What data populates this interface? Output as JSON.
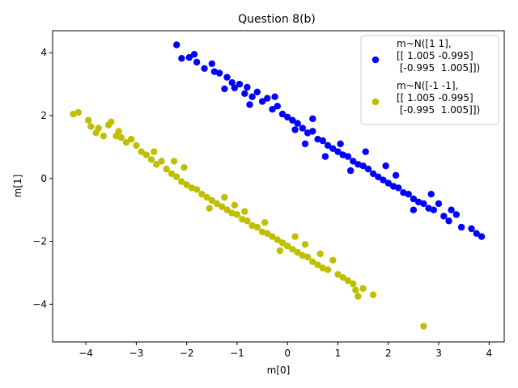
{
  "chart_data": {
    "type": "scatter",
    "title": "Question 8(b)",
    "xlabel": "m[0]",
    "ylabel": "m[1]",
    "xlim": [
      -4.66,
      4.3
    ],
    "ylim": [
      -5.2,
      4.7
    ],
    "xticks": [
      -4,
      -3,
      -2,
      -1,
      0,
      1,
      2,
      3,
      4
    ],
    "yticks": [
      -4,
      -2,
      0,
      2,
      4
    ],
    "grid": false,
    "legend_position": "top-right",
    "series": [
      {
        "name": "m~N([1 1],\n[[ 1.005 -0.995]\n [-0.995  1.005]])",
        "color": "#0000ff",
        "points": [
          [
            -2.2,
            4.25
          ],
          [
            -2.1,
            3.82
          ],
          [
            -1.95,
            3.85
          ],
          [
            -1.85,
            3.95
          ],
          [
            -1.8,
            3.7
          ],
          [
            -1.65,
            3.5
          ],
          [
            -1.5,
            3.65
          ],
          [
            -1.45,
            3.4
          ],
          [
            -1.35,
            3.35
          ],
          [
            -1.2,
            3.22
          ],
          [
            -1.1,
            3.05
          ],
          [
            -1.05,
            2.88
          ],
          [
            -0.95,
            3.0
          ],
          [
            -0.85,
            2.7
          ],
          [
            -0.8,
            2.9
          ],
          [
            -0.7,
            2.6
          ],
          [
            -0.6,
            2.75
          ],
          [
            -0.5,
            2.45
          ],
          [
            -0.4,
            2.55
          ],
          [
            -0.3,
            2.2
          ],
          [
            -0.2,
            2.3
          ],
          [
            -0.1,
            2.05
          ],
          [
            0.0,
            1.95
          ],
          [
            0.1,
            1.85
          ],
          [
            0.2,
            1.75
          ],
          [
            0.3,
            1.6
          ],
          [
            0.4,
            1.45
          ],
          [
            0.5,
            1.5
          ],
          [
            0.6,
            1.25
          ],
          [
            0.7,
            1.2
          ],
          [
            0.8,
            1.05
          ],
          [
            0.9,
            0.95
          ],
          [
            1.0,
            0.85
          ],
          [
            1.1,
            0.75
          ],
          [
            1.2,
            0.7
          ],
          [
            1.3,
            0.55
          ],
          [
            1.4,
            0.45
          ],
          [
            1.5,
            0.4
          ],
          [
            1.6,
            0.3
          ],
          [
            1.7,
            0.15
          ],
          [
            1.8,
            0.05
          ],
          [
            1.9,
            -0.05
          ],
          [
            2.0,
            -0.15
          ],
          [
            2.1,
            -0.25
          ],
          [
            2.2,
            -0.3
          ],
          [
            2.3,
            -0.45
          ],
          [
            2.4,
            -0.5
          ],
          [
            2.5,
            -0.65
          ],
          [
            2.6,
            -0.75
          ],
          [
            2.7,
            -0.8
          ],
          [
            2.8,
            -0.95
          ],
          [
            2.9,
            -1.0
          ],
          [
            3.0,
            -0.8
          ],
          [
            3.1,
            -1.2
          ],
          [
            3.2,
            -1.35
          ],
          [
            3.35,
            -1.15
          ],
          [
            3.45,
            -1.55
          ],
          [
            3.65,
            -1.6
          ],
          [
            3.75,
            -1.75
          ],
          [
            3.85,
            -1.85
          ],
          [
            0.5,
            1.9
          ],
          [
            0.75,
            0.7
          ],
          [
            1.95,
            0.4
          ],
          [
            1.25,
            0.25
          ],
          [
            2.5,
            -1.0
          ],
          [
            -0.25,
            2.6
          ],
          [
            0.35,
            1.1
          ],
          [
            1.55,
            0.85
          ],
          [
            2.85,
            -0.5
          ],
          [
            -0.75,
            2.35
          ],
          [
            0.15,
            1.55
          ],
          [
            1.05,
            1.1
          ],
          [
            2.15,
            0.1
          ],
          [
            3.25,
            -1.0
          ],
          [
            -1.25,
            2.85
          ]
        ]
      },
      {
        "name": "m~N([-1 -1],\n[[ 1.005 -0.995]\n [-0.995  1.005]])",
        "color": "#bfbf00",
        "points": [
          [
            -4.25,
            2.05
          ],
          [
            -4.15,
            2.1
          ],
          [
            -3.95,
            1.85
          ],
          [
            -3.9,
            1.65
          ],
          [
            -3.8,
            1.45
          ],
          [
            -3.75,
            1.6
          ],
          [
            -3.65,
            1.35
          ],
          [
            -3.55,
            1.7
          ],
          [
            -3.5,
            1.8
          ],
          [
            -3.4,
            1.35
          ],
          [
            -3.3,
            1.3
          ],
          [
            -3.2,
            1.15
          ],
          [
            -3.1,
            1.25
          ],
          [
            -3.0,
            1.05
          ],
          [
            -2.9,
            0.85
          ],
          [
            -2.8,
            0.75
          ],
          [
            -2.7,
            0.6
          ],
          [
            -2.6,
            0.45
          ],
          [
            -2.5,
            0.55
          ],
          [
            -2.4,
            0.3
          ],
          [
            -2.3,
            0.15
          ],
          [
            -2.2,
            0.05
          ],
          [
            -2.1,
            -0.1
          ],
          [
            -2.0,
            -0.2
          ],
          [
            -1.9,
            -0.3
          ],
          [
            -1.8,
            -0.35
          ],
          [
            -1.7,
            -0.5
          ],
          [
            -1.6,
            -0.6
          ],
          [
            -1.5,
            -0.7
          ],
          [
            -1.4,
            -0.8
          ],
          [
            -1.3,
            -0.9
          ],
          [
            -1.2,
            -1.0
          ],
          [
            -1.1,
            -1.1
          ],
          [
            -1.0,
            -1.15
          ],
          [
            -0.9,
            -1.3
          ],
          [
            -0.8,
            -1.35
          ],
          [
            -0.7,
            -1.5
          ],
          [
            -0.6,
            -1.55
          ],
          [
            -0.5,
            -1.7
          ],
          [
            -0.4,
            -1.75
          ],
          [
            -0.3,
            -1.85
          ],
          [
            -0.2,
            -1.95
          ],
          [
            -0.1,
            -2.05
          ],
          [
            0.0,
            -2.15
          ],
          [
            0.1,
            -2.25
          ],
          [
            0.2,
            -2.35
          ],
          [
            0.3,
            -2.45
          ],
          [
            0.4,
            -2.5
          ],
          [
            0.5,
            -2.65
          ],
          [
            0.6,
            -2.75
          ],
          [
            0.7,
            -2.85
          ],
          [
            0.8,
            -2.9
          ],
          [
            0.9,
            -2.6
          ],
          [
            1.0,
            -3.05
          ],
          [
            1.1,
            -3.15
          ],
          [
            1.2,
            -3.25
          ],
          [
            1.3,
            -3.35
          ],
          [
            1.35,
            -3.55
          ],
          [
            1.4,
            -3.75
          ],
          [
            1.5,
            -3.5
          ],
          [
            1.7,
            -3.7
          ],
          [
            2.7,
            -4.7
          ],
          [
            -2.05,
            0.35
          ],
          [
            -1.25,
            -0.6
          ],
          [
            -0.45,
            -1.4
          ],
          [
            0.35,
            -2.1
          ],
          [
            -2.65,
            0.85
          ],
          [
            -1.55,
            -0.95
          ],
          [
            -0.85,
            -1.05
          ],
          [
            0.15,
            -1.85
          ],
          [
            -3.35,
            1.5
          ],
          [
            -2.25,
            0.55
          ],
          [
            -1.05,
            -0.85
          ],
          [
            -0.15,
            -2.3
          ],
          [
            0.65,
            -2.4
          ]
        ]
      }
    ]
  }
}
